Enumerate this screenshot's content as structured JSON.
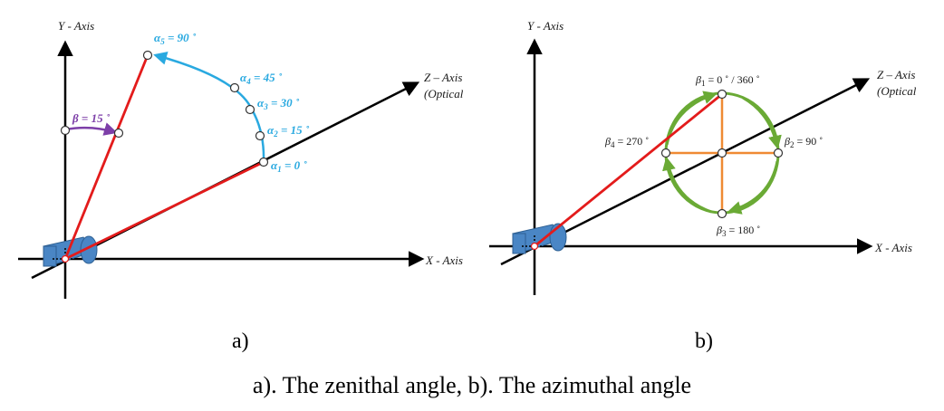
{
  "panel_a": {
    "y_axis_label": "Y - Axis",
    "x_axis_label": "X - Axis",
    "z_axis_label": "Z – Axis",
    "z_axis_sub": "(Optical",
    "beta": {
      "sym": "β",
      "text": " = 15 ˚"
    },
    "alphas": [
      {
        "sym": "α",
        "sub": "1",
        "text": " = 0 ˚"
      },
      {
        "sym": "α",
        "sub": "2",
        "text": " = 15 ˚"
      },
      {
        "sym": "α",
        "sub": "3",
        "text": " = 30 ˚"
      },
      {
        "sym": "α",
        "sub": "4",
        "text": " = 45 ˚"
      },
      {
        "sym": "α",
        "sub": "5",
        "text": " = 90 ˚"
      }
    ],
    "label": "a)"
  },
  "panel_b": {
    "y_axis_label": "Y - Axis",
    "x_axis_label": "X - Axis",
    "z_axis_label": "Z – Axis",
    "z_axis_sub": "(Optical",
    "betas": [
      {
        "sym": "β",
        "sub": "1",
        "text": " = 0 ˚ / 360 ˚"
      },
      {
        "sym": "β",
        "sub": "2",
        "text": " = 90 ˚"
      },
      {
        "sym": "β",
        "sub": "3",
        "text": " = 180 ˚"
      },
      {
        "sym": "β",
        "sub": "4",
        "text": " = 270 ˚"
      }
    ],
    "label": "b)"
  },
  "caption": "a). The zenithal angle, b). The azimuthal angle",
  "colors": {
    "red_line": "#e31b1b",
    "cyan_arc": "#29a9e0",
    "purple_arc": "#7d3fa8",
    "green_circle": "#6aaa35",
    "orange_cross": "#ef8a33",
    "camera": "#4a86c5"
  }
}
